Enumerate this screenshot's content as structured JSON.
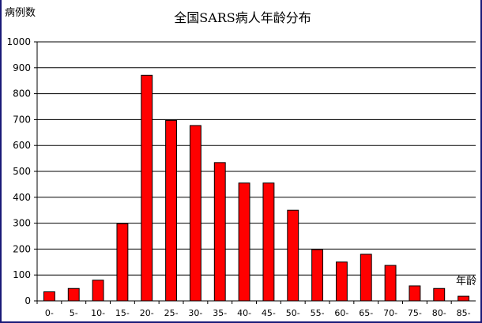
{
  "chart_data": {
    "type": "bar",
    "title": "全国SARS病人年龄分布",
    "ylabel": "病例数",
    "xlabel": "年龄",
    "ylim": [
      0,
      1000
    ],
    "yticks": [
      0,
      100,
      200,
      300,
      400,
      500,
      600,
      700,
      800,
      900,
      1000
    ],
    "grid": true,
    "bar_color": "#ff0000",
    "categories": [
      "0-",
      "5-",
      "10-",
      "15-",
      "20-",
      "25-",
      "30-",
      "35-",
      "40-",
      "45-",
      "50-",
      "55-",
      "60-",
      "65-",
      "70-",
      "75-",
      "80-",
      "85-"
    ],
    "values": [
      35,
      48,
      80,
      298,
      871,
      697,
      677,
      534,
      455,
      455,
      350,
      198,
      150,
      180,
      137,
      58,
      48,
      18
    ]
  }
}
